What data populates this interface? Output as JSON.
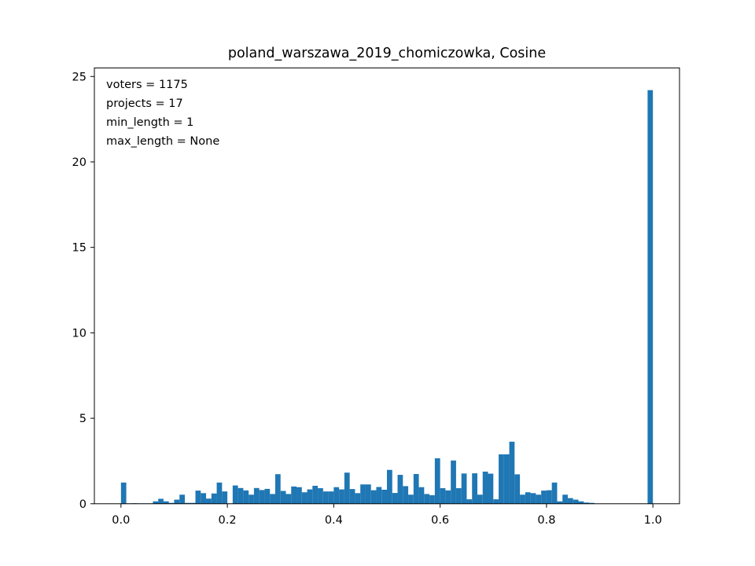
{
  "chart_data": {
    "type": "bar",
    "title": "poland_warszawa_2019_chomiczowka, Cosine",
    "xlabel": "",
    "ylabel": "",
    "xlim": [
      -0.05,
      1.05
    ],
    "ylim": [
      0,
      25.5
    ],
    "xticks": [
      0.0,
      0.2,
      0.4,
      0.6,
      0.8,
      1.0
    ],
    "xtick_labels": [
      "0.0",
      "0.2",
      "0.4",
      "0.6",
      "0.8",
      "1.0"
    ],
    "yticks": [
      0,
      5,
      10,
      15,
      20,
      25
    ],
    "ytick_labels": [
      "0",
      "5",
      "10",
      "15",
      "20",
      "25"
    ],
    "bin_width": 0.01,
    "series": [
      {
        "color": "#1f77b4",
        "x": [
          0.0,
          0.01,
          0.02,
          0.03,
          0.04,
          0.05,
          0.06,
          0.07,
          0.08,
          0.09,
          0.1,
          0.11,
          0.12,
          0.13,
          0.14,
          0.15,
          0.16,
          0.17,
          0.18,
          0.19,
          0.2,
          0.21,
          0.22,
          0.23,
          0.24,
          0.25,
          0.26,
          0.27,
          0.28,
          0.29,
          0.3,
          0.31,
          0.32,
          0.33,
          0.34,
          0.35,
          0.36,
          0.37,
          0.38,
          0.39,
          0.4,
          0.41,
          0.42,
          0.43,
          0.44,
          0.45,
          0.46,
          0.47,
          0.48,
          0.49,
          0.5,
          0.51,
          0.52,
          0.53,
          0.54,
          0.55,
          0.56,
          0.57,
          0.58,
          0.59,
          0.6,
          0.61,
          0.62,
          0.63,
          0.64,
          0.65,
          0.66,
          0.67,
          0.68,
          0.69,
          0.7,
          0.71,
          0.72,
          0.73,
          0.74,
          0.75,
          0.76,
          0.77,
          0.78,
          0.79,
          0.8,
          0.81,
          0.82,
          0.83,
          0.84,
          0.85,
          0.86,
          0.87,
          0.88,
          0.89,
          0.9,
          0.91,
          0.92,
          0.93,
          0.94,
          0.95,
          0.96,
          0.97,
          0.98,
          0.99
        ],
        "values": [
          1.24,
          0.02,
          0.03,
          0.02,
          0.02,
          0.02,
          0.14,
          0.29,
          0.14,
          0.05,
          0.24,
          0.53,
          0.05,
          0.05,
          0.77,
          0.62,
          0.3,
          0.6,
          1.24,
          0.72,
          0.02,
          1.07,
          0.92,
          0.78,
          0.53,
          0.92,
          0.8,
          0.87,
          0.57,
          1.73,
          0.75,
          0.57,
          1.01,
          0.97,
          0.67,
          0.84,
          1.05,
          0.91,
          0.72,
          0.72,
          0.97,
          0.84,
          1.82,
          0.86,
          0.62,
          1.13,
          1.13,
          0.79,
          0.98,
          0.82,
          1.98,
          0.63,
          1.69,
          1.03,
          0.53,
          1.74,
          0.97,
          0.57,
          0.5,
          2.66,
          0.91,
          0.78,
          2.53,
          0.91,
          1.77,
          0.26,
          1.78,
          0.53,
          1.88,
          1.76,
          0.26,
          2.89,
          2.89,
          3.63,
          1.72,
          0.53,
          0.67,
          0.62,
          0.53,
          0.77,
          0.79,
          1.24,
          0.14,
          0.53,
          0.33,
          0.24,
          0.14,
          0.07,
          0.05,
          0.0,
          0.0,
          0.0,
          0.0,
          0.0,
          0.0,
          0.0,
          0.0,
          0.0,
          0.0,
          24.2
        ]
      }
    ],
    "annotation_lines": [
      "voters = 1175",
      "projects = 17",
      "min_length = 1",
      "max_length = None"
    ],
    "annotation_placement": "top-left",
    "grid": false,
    "legend": "none"
  }
}
